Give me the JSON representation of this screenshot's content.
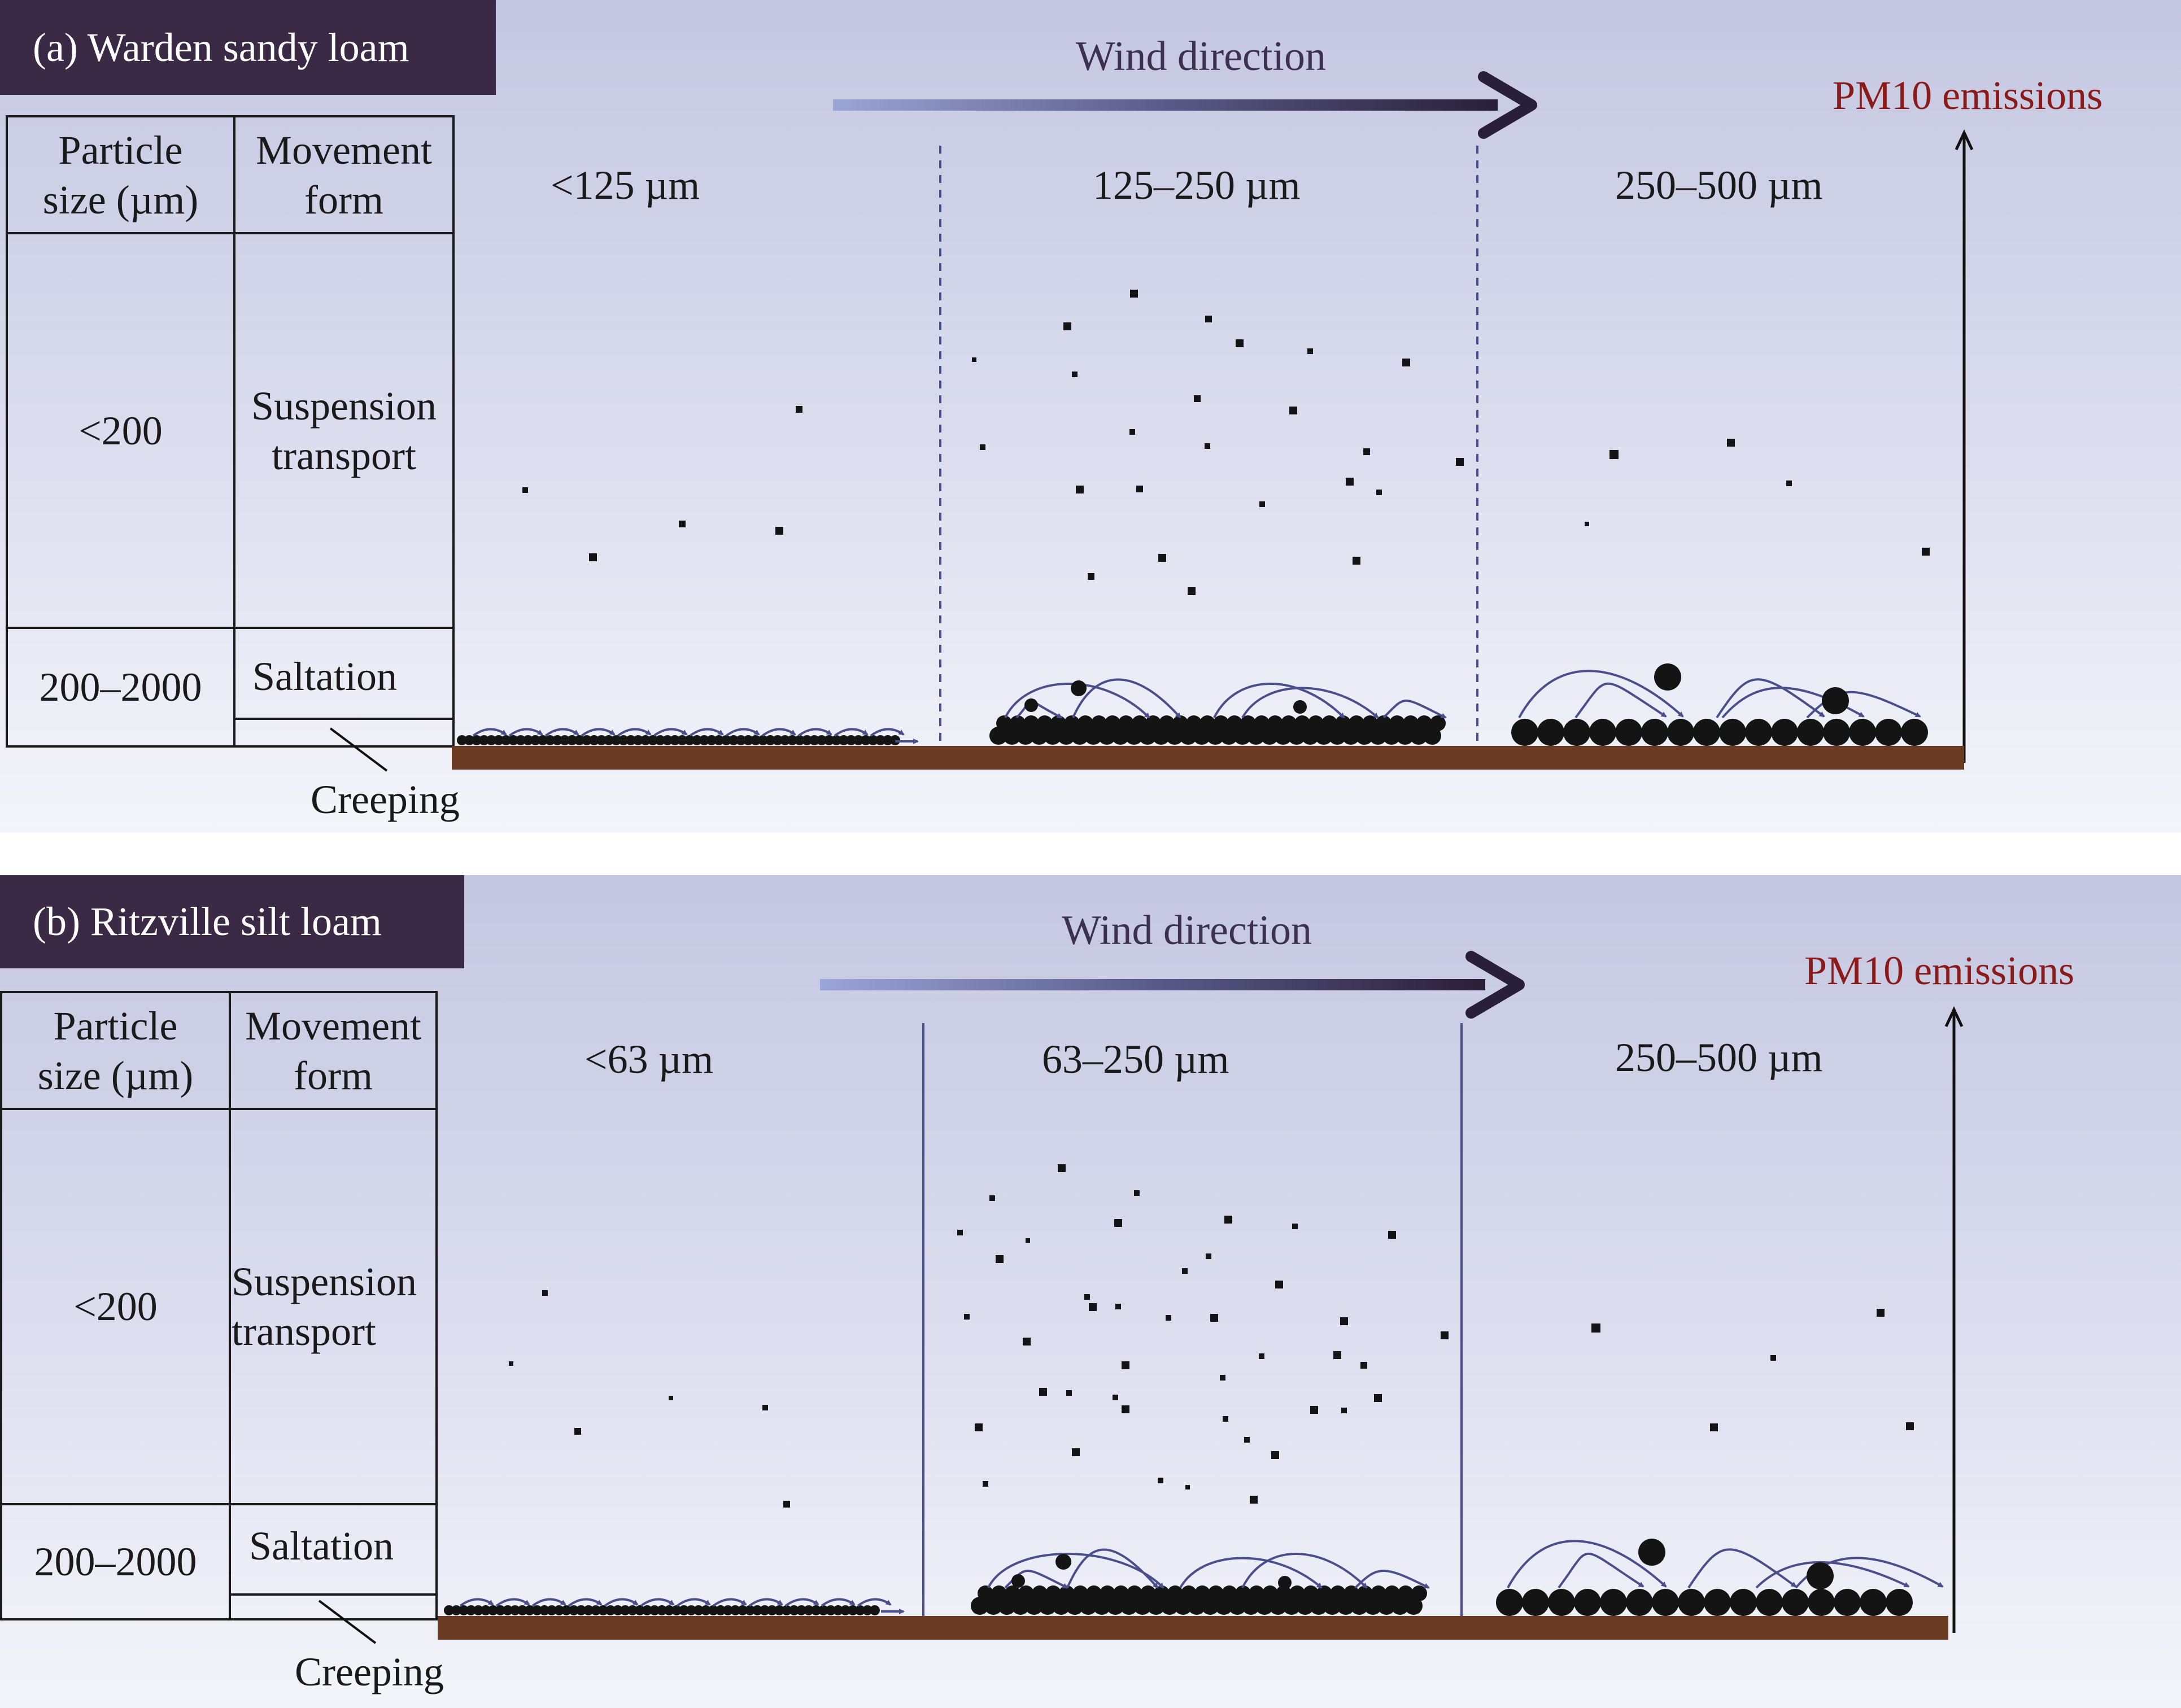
{
  "panels": [
    {
      "title": "(a) Warden sandy loam",
      "table": {
        "header": {
          "size": "Particle size (µm)",
          "movement": "Movement form"
        },
        "rows": [
          {
            "size": "<200",
            "movement": "Suspension transport"
          },
          {
            "size": "200–2000",
            "movement": "Saltation"
          }
        ],
        "creeping": "Creeping"
      },
      "wind_label": "Wind direction",
      "pm_label": "PM10 emissions",
      "zones": [
        "<125 µm",
        "125–250 µm",
        "250–500 µm"
      ],
      "divider_style": "dashed"
    },
    {
      "title": "(b) Ritzville silt loam",
      "table": {
        "header": {
          "size": "Particle size (µm)",
          "movement": "Movement form"
        },
        "rows": [
          {
            "size": "<200",
            "movement": "Suspension transport"
          },
          {
            "size": "200–2000",
            "movement": "Saltation"
          }
        ],
        "creeping": "Creeping"
      },
      "wind_label": "Wind direction",
      "pm_label": "PM10 emissions",
      "zones": [
        "<63 µm",
        "63–250 µm",
        "250–500 µm"
      ],
      "divider_style": "solid"
    }
  ],
  "colors": {
    "title_bg": "#3a2a45",
    "ground": "#6b3a22",
    "particle": "#141414",
    "trajectory": "#4a4e8a",
    "pm_text": "#8b1a1a",
    "wind_start": "#9aa6d6",
    "wind_end": "#2a1f38"
  },
  "icons": {
    "wind_arrow": "gradient-arrow-right",
    "pm_axis": "vertical-arrow-up"
  }
}
